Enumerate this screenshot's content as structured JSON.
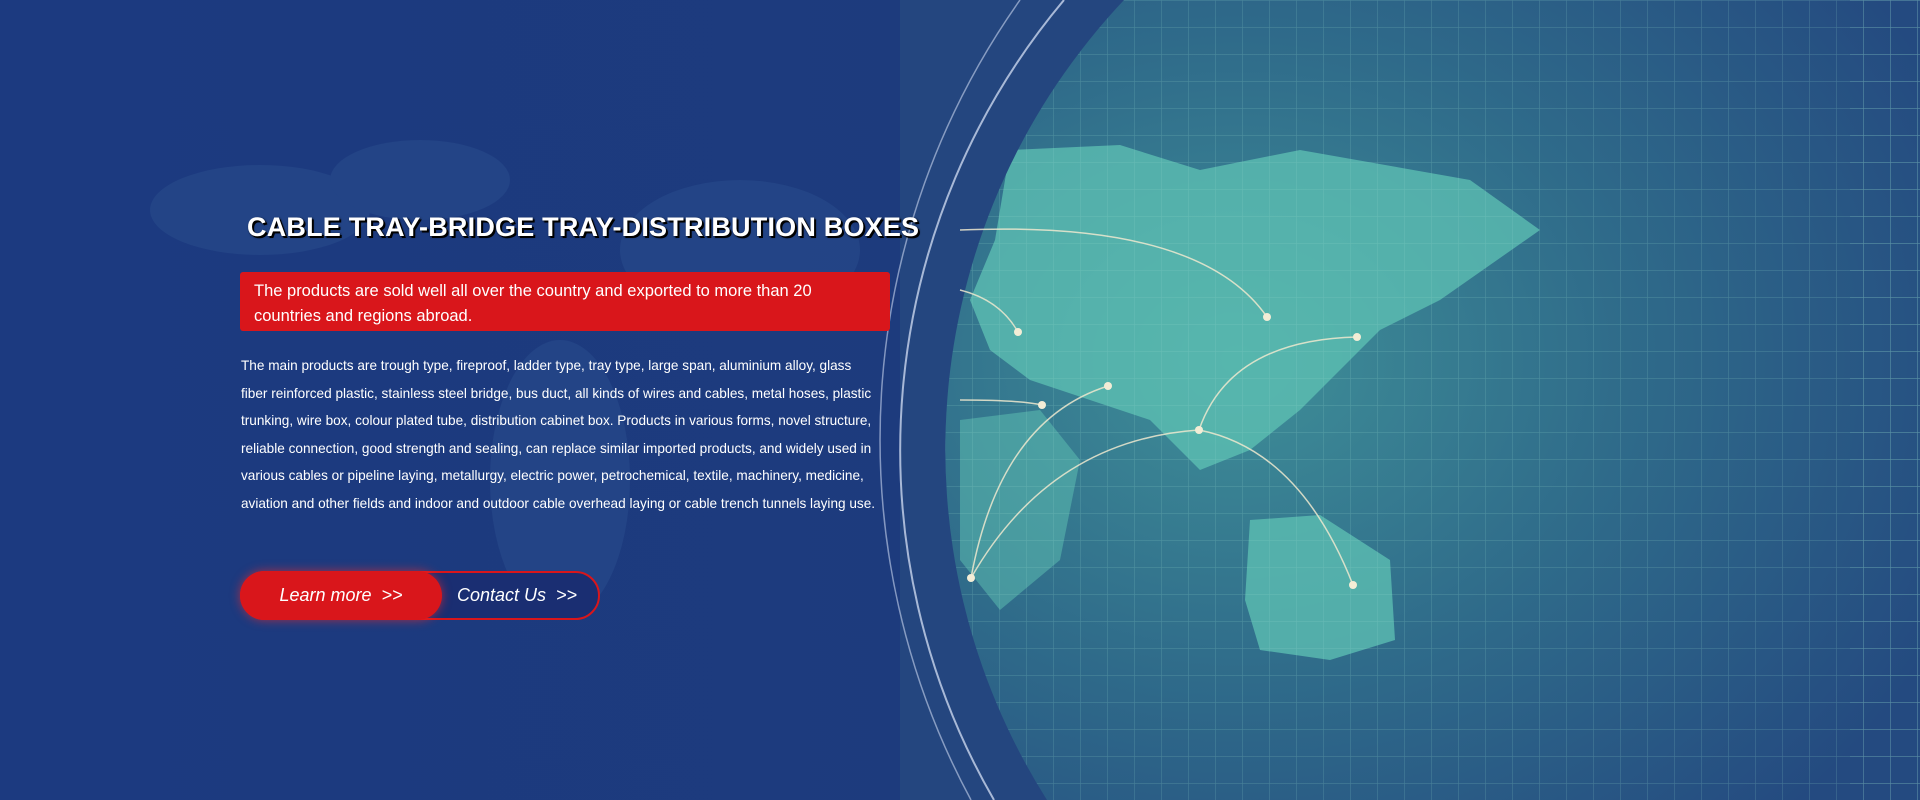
{
  "banner": {
    "title": "CABLE TRAY-BRIDGE TRAY-DISTRIBUTION BOXES",
    "highlight": "The products are sold well all over the country and exported to more than 20 countries and regions abroad.",
    "description": "The main products are trough type, fireproof, ladder type, tray type, large span, aluminium alloy, glass fiber reinforced plastic, stainless steel bridge, bus duct, all kinds of wires and cables, metal hoses, plastic trunking, wire box, colour plated tube, distribution cabinet box. Products in various forms, novel structure, reliable connection, good strength and sealing, can replace similar imported products, and widely used in various cables or pipeline laying, metallurgy, electric power, petrochemical, textile, machinery, medicine, aviation and other fields and indoor and outdoor cable overhead laying or cable trench tunnels laying use.",
    "learn_more": "Learn more  >>",
    "contact_us": "Contact Us  >>"
  },
  "colors": {
    "background": "#1d3a7d",
    "accent": "#d9161b",
    "globe": "#4fb3a8"
  }
}
